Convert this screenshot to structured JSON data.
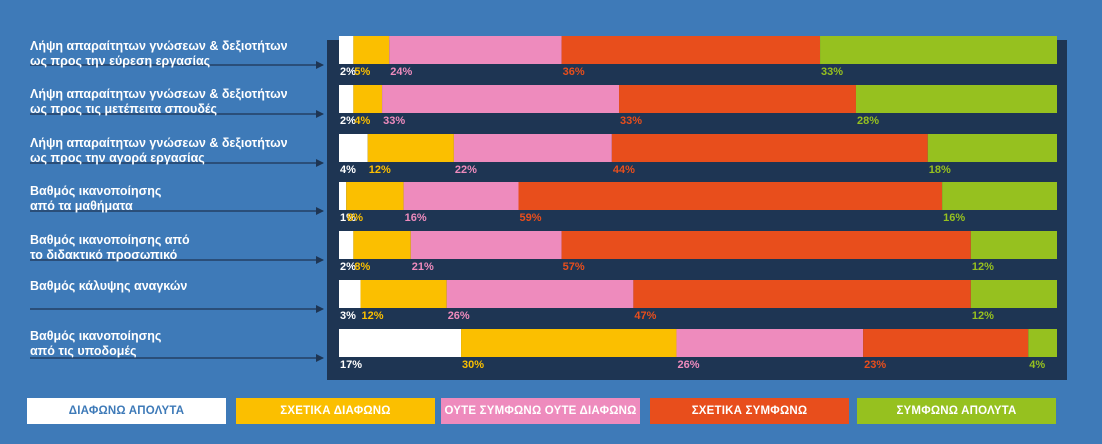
{
  "chart_data": {
    "type": "bar",
    "orientation": "horizontal",
    "stacked": true,
    "percent_stacked": true,
    "categories": [
      "Λήψη απαραίτητων γνώσεων & δεξιοτήτων\nως προς την εύρεση εργασίας",
      "Λήψη απαραίτητων γνώσεων & δεξιοτήτων\nως προς τις μετέπειτα σπουδές",
      "Λήψη απαραίτητων γνώσεων & δεξιοτήτων\nως προς την αγορά εργασίας",
      "Βαθμός ικανοποίησης\nαπό τα μαθήματα",
      "Βαθμός ικανοποίησης από\nτο διδακτικό προσωπικό",
      "Βαθμός κάλυψης αναγκών",
      "Βαθμός ικανοποίησης\nαπό τις υποδομές"
    ],
    "series": [
      {
        "name": "ΔΙΑΦΩΝΩ ΑΠΟΛΥΤΑ",
        "color": "#ffffff",
        "label_color": "#ffffff",
        "values": [
          2,
          2,
          4,
          1,
          2,
          3,
          17
        ]
      },
      {
        "name": "ΣΧΕΤΙΚΑ ΔΙΑΦΩΝΩ",
        "color": "#fbbf00",
        "label_color": "#fbbf00",
        "values": [
          5,
          4,
          12,
          8,
          8,
          12,
          30
        ]
      },
      {
        "name": "ΟΥΤΕ ΣΥΜΦΩΝΩ ΟΥΤΕ ΔΙΑΦΩΝΩ",
        "color": "#ee8bbd",
        "label_color": "#ee8bbd",
        "values": [
          24,
          33,
          22,
          16,
          21,
          26,
          26
        ]
      },
      {
        "name": "ΣΧΕΤΙΚΑ ΣΥΜΦΩΝΩ",
        "color": "#e84e1c",
        "label_color": "#e84e1c",
        "values": [
          36,
          33,
          44,
          59,
          57,
          47,
          23
        ]
      },
      {
        "name": "ΣΥΜΦΩΝΩ ΑΠΟΛΥΤΑ",
        "color": "#96c11f",
        "label_color": "#96c11f",
        "values": [
          33,
          28,
          18,
          16,
          12,
          12,
          4
        ]
      }
    ],
    "value_suffix": "%",
    "legend_position": "bottom",
    "background_color": "#3e7ab8",
    "panel_color": "#1e3553",
    "title": "",
    "xlabel": "",
    "ylabel": ""
  }
}
